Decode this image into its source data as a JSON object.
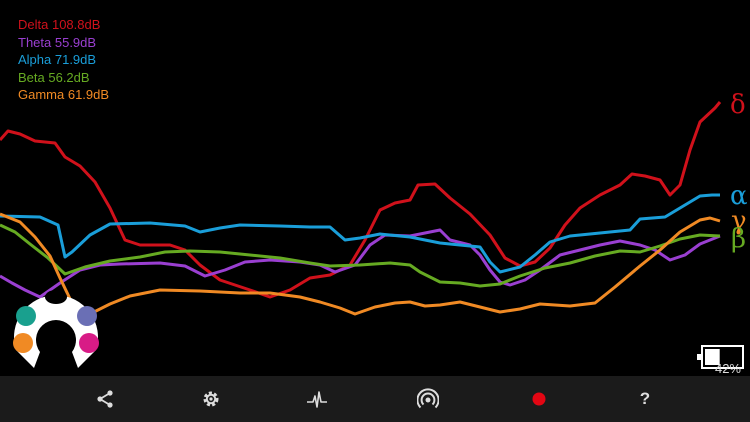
{
  "legend": [
    {
      "key": "delta",
      "label": "Delta 108.8dB",
      "color": "#d0111b"
    },
    {
      "key": "theta",
      "label": "Theta 55.9dB",
      "color": "#9a3fd1"
    },
    {
      "key": "alpha",
      "label": "Alpha 71.9dB",
      "color": "#1a9ed9"
    },
    {
      "key": "beta",
      "label": "Beta 56.2dB",
      "color": "#66aa22"
    },
    {
      "key": "gamma",
      "label": "Gamma 61.9dB",
      "color": "#f08a24"
    }
  ],
  "greek": {
    "delta": "δ",
    "alpha": "α",
    "gamma": "γ",
    "beta": "β"
  },
  "headset": {
    "sensor_colors": [
      "#ffffff",
      "#19a08e",
      "#6a6fb5",
      "#f08a24",
      "#d81b86"
    ]
  },
  "battery": {
    "percent_label": "42%",
    "level": 0.42
  },
  "toolbar": {
    "icons": [
      "share-icon",
      "settings-icon",
      "heartbeat-icon",
      "broadcast-icon",
      "record-icon",
      "help-icon"
    ],
    "help_label": "?",
    "record_color": "#e30613"
  }
}
